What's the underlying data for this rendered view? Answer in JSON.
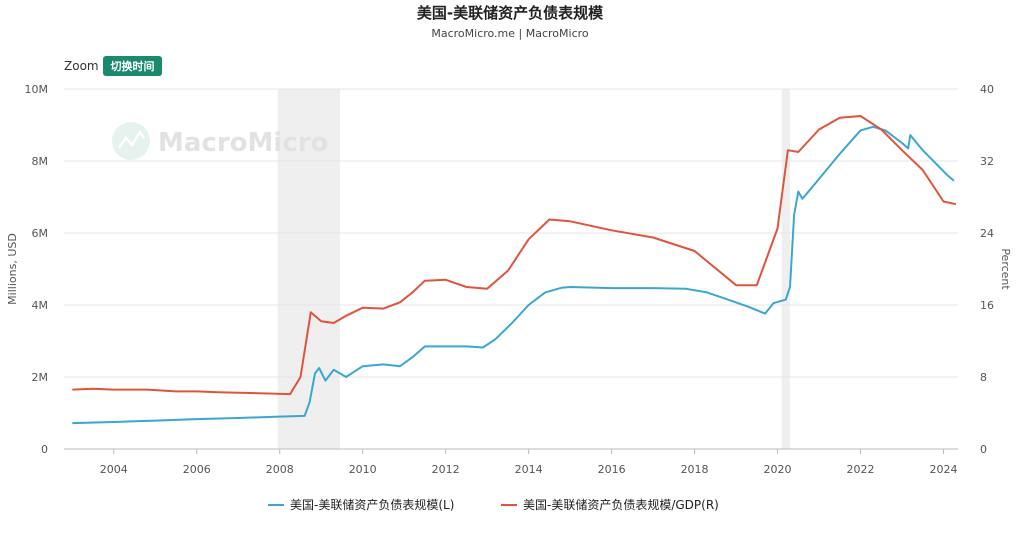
{
  "chart_data": {
    "type": "line",
    "title": "美国-美联储资产负债表规模",
    "subtitle": "MacroMicro.me | MacroMicro",
    "zoom_label": "Zoom",
    "zoom_button": "切换时间",
    "watermark": "MacroMicro",
    "y_left": {
      "label": "Millions, USD",
      "ticks": [
        "0",
        "2M",
        "4M",
        "6M",
        "8M",
        "10M"
      ],
      "range": [
        0,
        10
      ]
    },
    "y_right": {
      "label": "Percent",
      "ticks": [
        "0",
        "8",
        "16",
        "24",
        "32",
        "40"
      ],
      "range": [
        0,
        40
      ]
    },
    "x": {
      "range": [
        2002.8,
        2024.35
      ],
      "ticks": [
        "2004",
        "2006",
        "2008",
        "2010",
        "2012",
        "2014",
        "2016",
        "2018",
        "2020",
        "2022",
        "2024"
      ]
    },
    "shaded_periods": [
      [
        2007.95,
        2009.45
      ],
      [
        2020.1,
        2020.3
      ]
    ],
    "grid": true,
    "legend_position": "bottom",
    "series": [
      {
        "name": "美国-美联储资产负债表规模(L)",
        "axis": "left",
        "color": "#3ba6cf",
        "points": [
          [
            2003.0,
            0.72
          ],
          [
            2004.0,
            0.75
          ],
          [
            2005.0,
            0.79
          ],
          [
            2006.0,
            0.83
          ],
          [
            2007.0,
            0.86
          ],
          [
            2008.0,
            0.9
          ],
          [
            2008.6,
            0.92
          ],
          [
            2008.72,
            1.3
          ],
          [
            2008.85,
            2.1
          ],
          [
            2008.95,
            2.25
          ],
          [
            2009.1,
            1.9
          ],
          [
            2009.3,
            2.2
          ],
          [
            2009.6,
            2.0
          ],
          [
            2010.0,
            2.3
          ],
          [
            2010.5,
            2.35
          ],
          [
            2010.9,
            2.3
          ],
          [
            2011.2,
            2.55
          ],
          [
            2011.5,
            2.85
          ],
          [
            2011.9,
            2.85
          ],
          [
            2012.5,
            2.85
          ],
          [
            2012.9,
            2.82
          ],
          [
            2013.2,
            3.05
          ],
          [
            2013.6,
            3.5
          ],
          [
            2014.0,
            4.0
          ],
          [
            2014.4,
            4.35
          ],
          [
            2014.8,
            4.48
          ],
          [
            2015.0,
            4.5
          ],
          [
            2016.0,
            4.47
          ],
          [
            2017.0,
            4.47
          ],
          [
            2017.8,
            4.45
          ],
          [
            2018.3,
            4.35
          ],
          [
            2018.8,
            4.15
          ],
          [
            2019.3,
            3.95
          ],
          [
            2019.7,
            3.76
          ],
          [
            2019.9,
            4.05
          ],
          [
            2020.2,
            4.15
          ],
          [
            2020.3,
            4.5
          ],
          [
            2020.4,
            6.5
          ],
          [
            2020.5,
            7.15
          ],
          [
            2020.6,
            6.95
          ],
          [
            2021.0,
            7.5
          ],
          [
            2021.5,
            8.2
          ],
          [
            2022.0,
            8.85
          ],
          [
            2022.3,
            8.95
          ],
          [
            2022.6,
            8.85
          ],
          [
            2023.0,
            8.5
          ],
          [
            2023.15,
            8.35
          ],
          [
            2023.2,
            8.72
          ],
          [
            2023.5,
            8.3
          ],
          [
            2023.8,
            7.95
          ],
          [
            2024.1,
            7.6
          ],
          [
            2024.25,
            7.45
          ]
        ]
      },
      {
        "name": "美国-美联储资产负债表规模/GDP(R)",
        "axis": "right",
        "color": "#e0533d",
        "points": [
          [
            2003.0,
            6.6
          ],
          [
            2003.5,
            6.7
          ],
          [
            2004.0,
            6.6
          ],
          [
            2004.8,
            6.6
          ],
          [
            2005.5,
            6.4
          ],
          [
            2006.0,
            6.4
          ],
          [
            2006.5,
            6.3
          ],
          [
            2007.5,
            6.2
          ],
          [
            2008.25,
            6.1
          ],
          [
            2008.5,
            8.0
          ],
          [
            2008.75,
            15.2
          ],
          [
            2009.0,
            14.2
          ],
          [
            2009.3,
            14.0
          ],
          [
            2009.6,
            14.8
          ],
          [
            2010.0,
            15.7
          ],
          [
            2010.5,
            15.6
          ],
          [
            2010.9,
            16.3
          ],
          [
            2011.2,
            17.4
          ],
          [
            2011.5,
            18.7
          ],
          [
            2012.0,
            18.8
          ],
          [
            2012.5,
            18.0
          ],
          [
            2013.0,
            17.8
          ],
          [
            2013.5,
            19.8
          ],
          [
            2014.0,
            23.3
          ],
          [
            2014.5,
            25.5
          ],
          [
            2015.0,
            25.3
          ],
          [
            2016.0,
            24.3
          ],
          [
            2017.0,
            23.5
          ],
          [
            2018.0,
            22.0
          ],
          [
            2019.0,
            18.2
          ],
          [
            2019.5,
            18.2
          ],
          [
            2020.0,
            24.5
          ],
          [
            2020.25,
            33.2
          ],
          [
            2020.5,
            33.0
          ],
          [
            2021.0,
            35.5
          ],
          [
            2021.5,
            36.8
          ],
          [
            2022.0,
            37.0
          ],
          [
            2022.5,
            35.5
          ],
          [
            2023.0,
            33.2
          ],
          [
            2023.5,
            31.0
          ],
          [
            2024.0,
            27.5
          ],
          [
            2024.3,
            27.2
          ]
        ]
      }
    ]
  }
}
